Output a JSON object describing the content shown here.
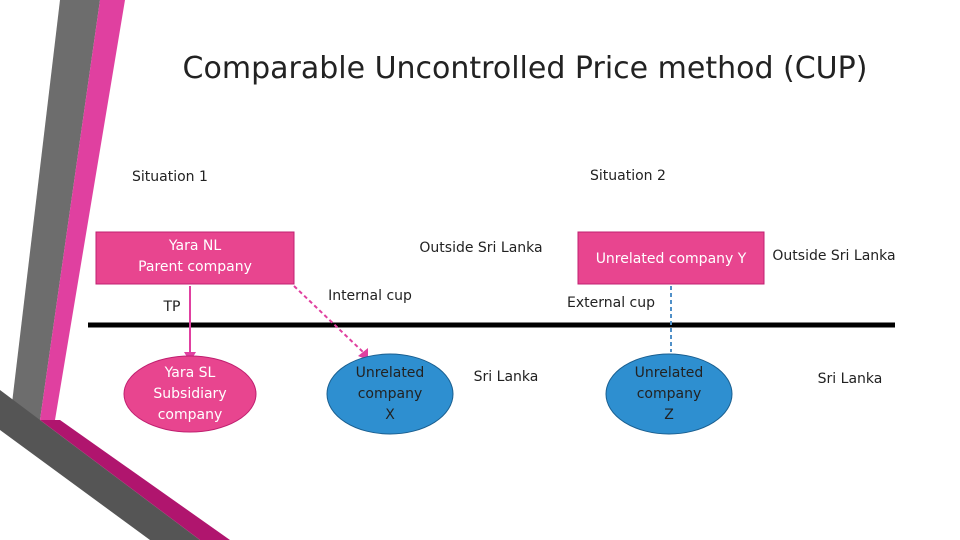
{
  "title": "Comparable Uncontrolled Price method (CUP)",
  "situation1": {
    "label": "Situation 1",
    "parent": "Yara NL\nParent company",
    "tp": "TP",
    "subsidiary": "Yara SL\nSubsidiary\ncompany",
    "outside": "Outside Sri Lanka",
    "internal": "Internal cup",
    "unrelated": "Unrelated\ncompany\nX",
    "inside": "Sri Lanka"
  },
  "situation2": {
    "label": "Situation 2",
    "unrelated_y": "Unrelated company Y",
    "outside": "Outside Sri Lanka",
    "external": "External cup",
    "unrelated_z": "Unrelated\ncompany\nZ",
    "inside": "Sri Lanka"
  }
}
